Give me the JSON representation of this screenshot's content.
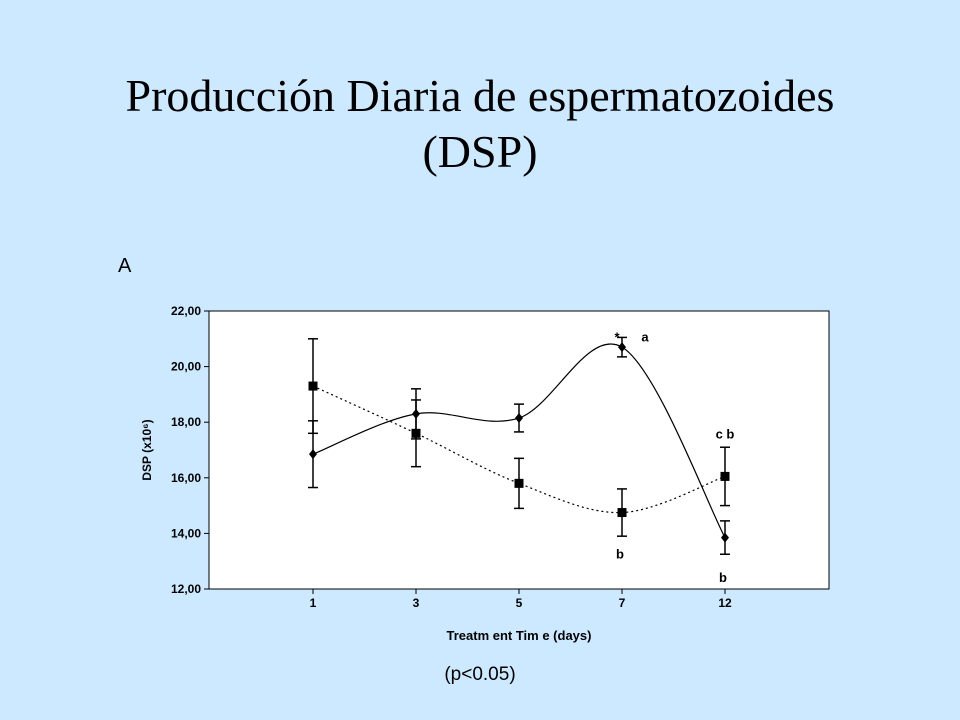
{
  "slide": {
    "title_line1": "Producción Diaria de espermatozoides",
    "title_line2": "(DSP)",
    "panel_letter": "A",
    "footnote": "(p<0.05)"
  },
  "chart_data": {
    "type": "line",
    "xlabel": "Treatm ent Tim e (days)",
    "ylabel": "DSP (x10⁶)",
    "categories": [
      "1",
      "3",
      "5",
      "7",
      "12"
    ],
    "ylim": [
      12,
      22
    ],
    "yticks": [
      "12,00",
      "14,00",
      "16,00",
      "18,00",
      "20,00",
      "22,00"
    ],
    "grid": false,
    "legend": "none",
    "series": [
      {
        "style": "solid",
        "marker": "diamond",
        "values": [
          16.85,
          18.3,
          18.15,
          20.7,
          13.85
        ],
        "errors": [
          1.2,
          0.9,
          0.5,
          0.35,
          0.6
        ]
      },
      {
        "style": "dotted",
        "marker": "square",
        "values": [
          19.3,
          17.6,
          15.8,
          14.75,
          16.05
        ],
        "errors": [
          1.7,
          1.2,
          0.9,
          0.85,
          1.05
        ]
      }
    ],
    "annotations": [
      {
        "text": "*",
        "x": "7",
        "y": 21.05
      },
      {
        "text": "a",
        "x": "7",
        "y": 21.05
      },
      {
        "text": "c b",
        "x": "12",
        "y": 17.55
      },
      {
        "text": "b",
        "x": "7",
        "y": 13.25
      },
      {
        "text": "b",
        "x": "12",
        "y": 12.4
      }
    ]
  }
}
